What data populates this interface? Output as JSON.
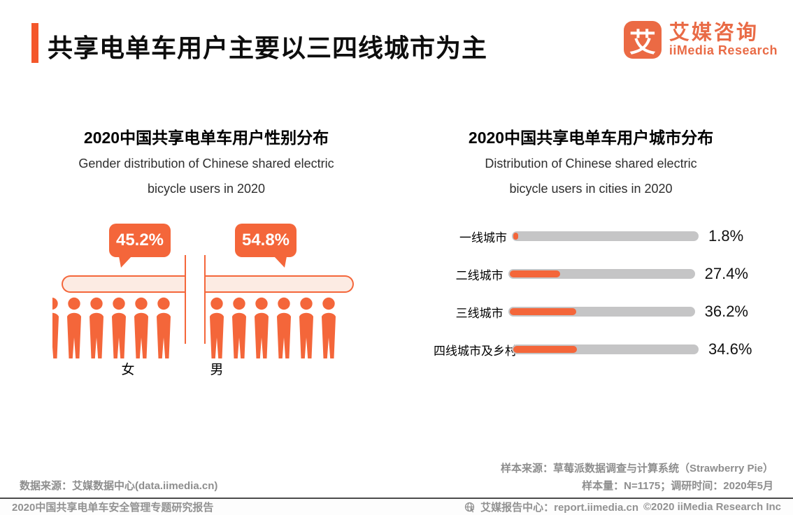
{
  "page": {
    "background": "#FFFFFF",
    "accent_color": "#F4663A"
  },
  "header": {
    "title": "共享电单车用户主要以三四线城市为主",
    "logo": {
      "icon_char": "艾",
      "brand_cn": "艾媒咨询",
      "brand_en": "iiMedia Research"
    }
  },
  "chart_data": [
    {
      "type": "bar",
      "style": "pictogram-split-pill",
      "title": "2020中国共享电单车用户性别分布",
      "subtitle_lines": [
        "Gender distribution of Chinese shared electric",
        "bicycle users in 2020"
      ],
      "categories": [
        "女",
        "男"
      ],
      "values": [
        45.2,
        54.8
      ],
      "value_labels": [
        "45.2%",
        "54.8%"
      ],
      "unit": "%",
      "figures_per_side": 6,
      "colors": {
        "fill": "#F4663A",
        "pill_bg": "#FCEBE3"
      }
    },
    {
      "type": "bar",
      "orientation": "horizontal",
      "title": "2020中国共享电单车用户城市分布",
      "subtitle_lines": [
        "Distribution of Chinese shared  electric",
        "bicycle users in cities in 2020"
      ],
      "categories": [
        "一线城市",
        "二线城市",
        "三线城市",
        "四线城市及乡村"
      ],
      "values": [
        1.8,
        27.4,
        36.2,
        34.6
      ],
      "value_labels": [
        "1.8%",
        "27.4%",
        "36.2%",
        "34.6%"
      ],
      "unit": "%",
      "xlim": [
        0,
        100
      ],
      "grid": false,
      "colors": {
        "track": "#C5C5C6",
        "fill": "#F4663A"
      }
    }
  ],
  "footer": {
    "source_left": "数据来源：艾媒数据中心(data.iimedia.cn)",
    "sample_source": "样本来源：草莓派数据调查与计算系统（Strawberry Pie）",
    "sample_info": "样本量：N=1175；调研时间：2020年5月"
  },
  "bottom_bar": {
    "report_title": "2020中国共享电单车安全管理专题研究报告",
    "report_center": "艾媒报告中心：report.iimedia.cn",
    "copyright": "©2020  iiMedia Research Inc"
  }
}
